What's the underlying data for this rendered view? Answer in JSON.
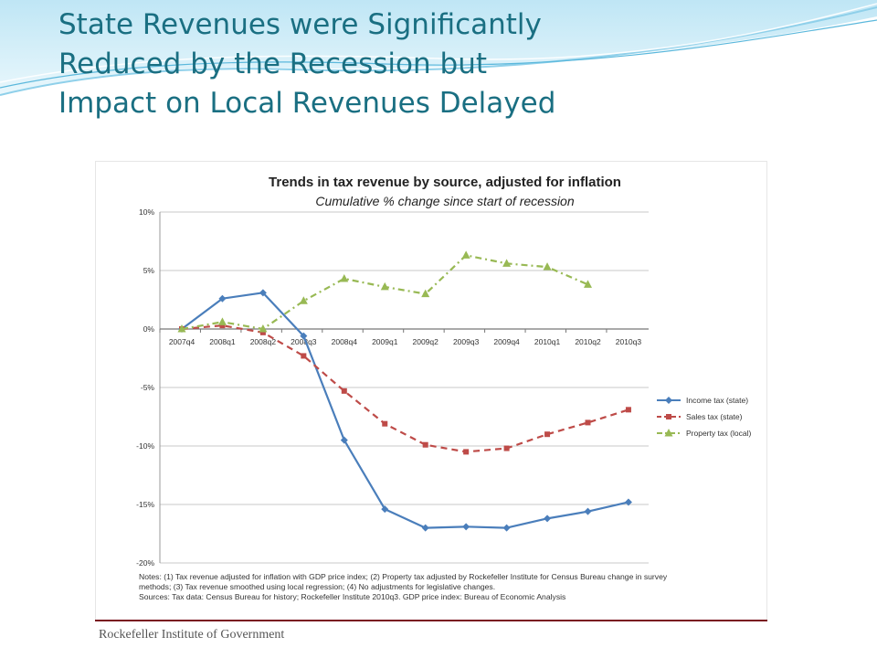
{
  "slide": {
    "title_lines": [
      "State Revenues were Significantly",
      "Reduced by the Recession but",
      "Impact on Local Revenues Delayed"
    ]
  },
  "chart_data": {
    "type": "line",
    "title": "Trends in tax revenue by source, adjusted for inflation",
    "subtitle": "Cumulative % change since start of recession",
    "categories": [
      "2007q4",
      "2008q1",
      "2008q2",
      "2008q3",
      "2008q4",
      "2009q1",
      "2009q2",
      "2009q3",
      "2009q4",
      "2010q1",
      "2010q2",
      "2010q3"
    ],
    "y_ticks": [
      "10%",
      "5%",
      "0%",
      "-5%",
      "-10%",
      "-15%",
      "-20%"
    ],
    "ylim": [
      -20,
      10
    ],
    "grid": true,
    "legend_position": "right",
    "series": [
      {
        "name": "Income tax (state)",
        "color": "#4a7ebb",
        "style": "solid",
        "marker": "diamond",
        "values": [
          0.0,
          2.6,
          3.1,
          -0.6,
          -9.5,
          -15.4,
          -17.0,
          -16.9,
          -17.0,
          -16.2,
          -15.6,
          -14.8
        ]
      },
      {
        "name": "Sales tax (state)",
        "color": "#be4b48",
        "style": "dashed",
        "marker": "square",
        "values": [
          0.0,
          0.3,
          -0.3,
          -2.3,
          -5.3,
          -8.1,
          -9.9,
          -10.5,
          -10.2,
          -9.0,
          -8.0,
          -6.9
        ]
      },
      {
        "name": "Property tax (local)",
        "color": "#98b954",
        "style": "dashdot",
        "marker": "triangle",
        "values": [
          0.0,
          0.6,
          0.0,
          2.4,
          4.3,
          3.6,
          3.0,
          6.3,
          5.6,
          5.3,
          3.8,
          null
        ]
      }
    ],
    "notes": [
      "Notes: (1) Tax revenue adjusted for inflation with GDP price index; (2) Property tax adjusted by Rockefeller Institute for Census Bureau change in survey",
      "methods; (3) Tax revenue smoothed using local regression; (4) No adjustments for legislative changes.",
      "Sources: Tax data: Census Bureau for history; Rockefeller Institute 2010q3. GDP price index: Bureau of Economic Analysis"
    ]
  },
  "footer": {
    "source": "Rockefeller Institute of Government"
  }
}
